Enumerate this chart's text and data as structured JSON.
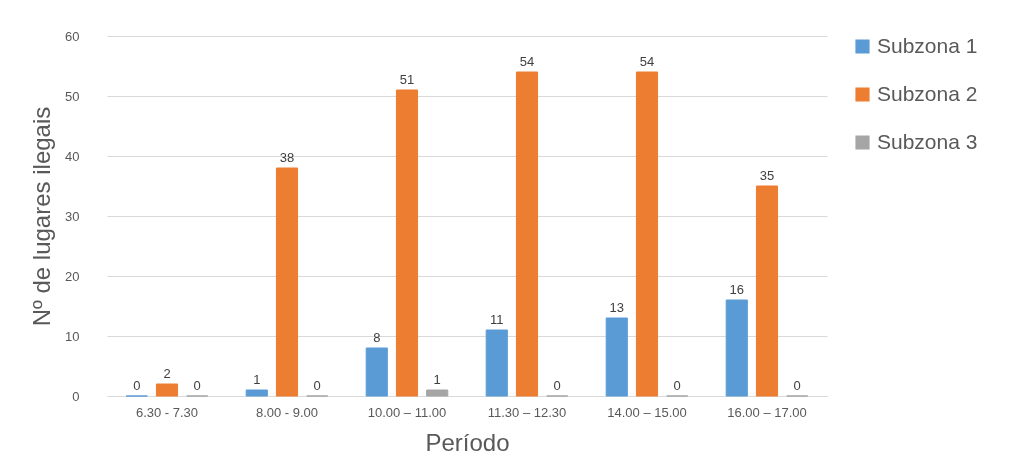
{
  "chart_data": {
    "type": "bar",
    "xlabel": "Período",
    "ylabel": "Nº de lugares ilegais",
    "categories": [
      "6.30 - 7.30",
      "8.00 - 9.00",
      "10.00 – 11.00",
      "11.30 – 12.30",
      "14.00 – 15.00",
      "16.00 – 17.00"
    ],
    "series": [
      {
        "name": "Subzona 1",
        "color": "#5b9bd5",
        "values": [
          0,
          1,
          8,
          11,
          13,
          16
        ]
      },
      {
        "name": "Subzona 2",
        "color": "#ed7d31",
        "values": [
          2,
          38,
          51,
          54,
          54,
          35
        ]
      },
      {
        "name": "Subzona 3",
        "color": "#a5a5a5",
        "values": [
          0,
          0,
          1,
          0,
          0,
          0
        ]
      }
    ],
    "ylim": [
      0,
      60
    ],
    "yticks": [
      0,
      10,
      20,
      30,
      40,
      50,
      60
    ],
    "grid": "y",
    "legend": "right",
    "data_labels": true
  }
}
